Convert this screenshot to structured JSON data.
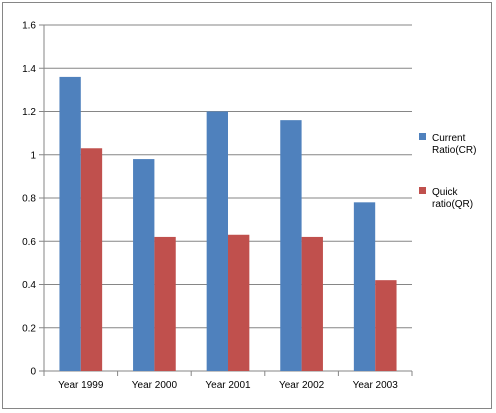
{
  "chart_data": {
    "type": "bar",
    "title": "",
    "xlabel": "",
    "ylabel": "",
    "categories": [
      "Year 1999",
      "Year 2000",
      "Year  2001",
      "Year 2002",
      "Year 2003"
    ],
    "series": [
      {
        "name": "Current Ratio(CR)",
        "legend_lines": [
          "Current",
          "Ratio(CR)"
        ],
        "color": "#4F81BD",
        "values": [
          1.36,
          0.98,
          1.2,
          1.16,
          0.78
        ]
      },
      {
        "name": "Quick ratio(QR)",
        "legend_lines": [
          "Quick",
          "ratio(QR)"
        ],
        "color": "#C0504D",
        "values": [
          1.03,
          0.62,
          0.63,
          0.62,
          0.42
        ]
      }
    ],
    "ylim": [
      0,
      1.6
    ],
    "yticks": [
      0,
      0.2,
      0.4,
      0.6,
      0.8,
      1,
      1.2,
      1.4,
      1.6
    ],
    "ytick_labels": [
      "0",
      "0.2",
      "0.4",
      "0.6",
      "0.8",
      "1",
      "1.2",
      "1.4",
      "1.6"
    ],
    "grid": true,
    "gridline_color": "#868686",
    "legend_position": "right"
  }
}
